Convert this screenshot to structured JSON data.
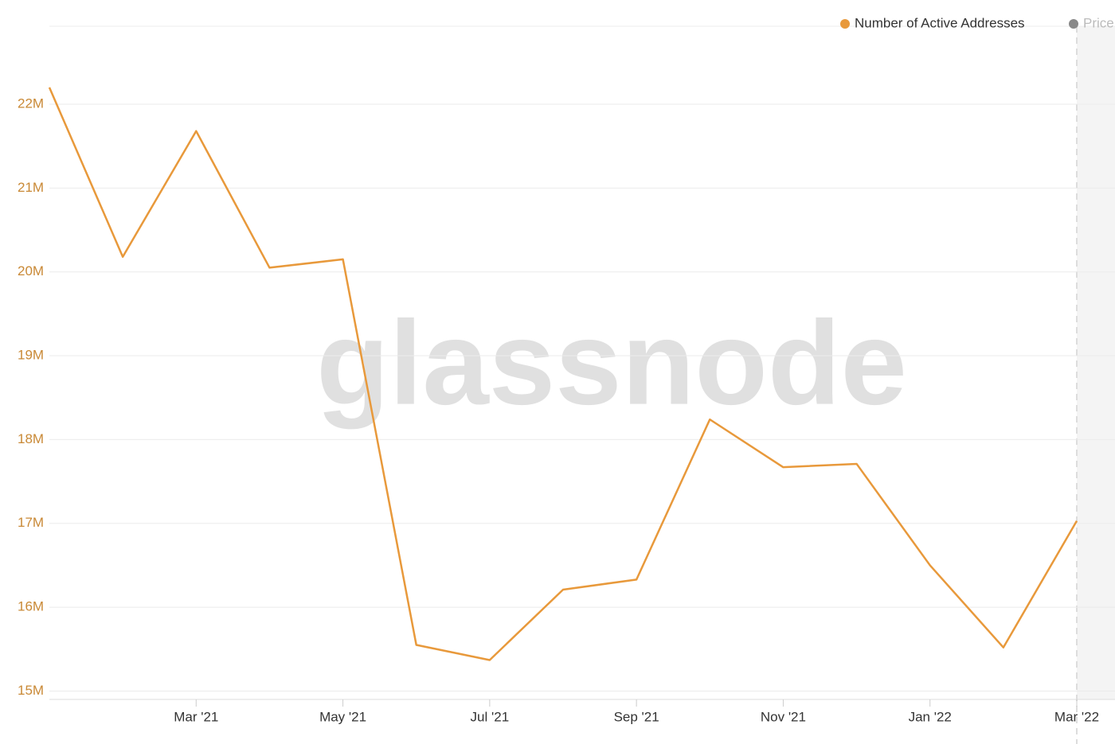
{
  "chart_data": {
    "type": "line",
    "watermark": "glassnode",
    "categories": [
      null,
      null,
      "Mar '21",
      null,
      "May '21",
      null,
      "Jul '21",
      null,
      "Sep '21",
      null,
      "Nov '21",
      null,
      "Jan '22",
      null,
      "Mar '22"
    ],
    "series": [
      {
        "name": "Number of Active Addresses",
        "color": "#e8993b",
        "values": [
          22.2,
          20.18,
          21.68,
          20.05,
          20.15,
          15.55,
          15.37,
          16.21,
          16.33,
          18.24,
          17.67,
          17.71,
          16.5,
          15.52,
          17.03
        ]
      }
    ],
    "inactive_legend": {
      "name": "Price",
      "color": "#888888"
    },
    "ylim": [
      14.9,
      22.93
    ],
    "yticks": [
      {
        "value": 15,
        "label": "15M"
      },
      {
        "value": 16,
        "label": "16M"
      },
      {
        "value": 17,
        "label": "17M"
      },
      {
        "value": 18,
        "label": "18M"
      },
      {
        "value": 19,
        "label": "19M"
      },
      {
        "value": 20,
        "label": "20M"
      },
      {
        "value": 21,
        "label": "21M"
      },
      {
        "value": 22,
        "label": "22M"
      }
    ],
    "grid": true
  }
}
